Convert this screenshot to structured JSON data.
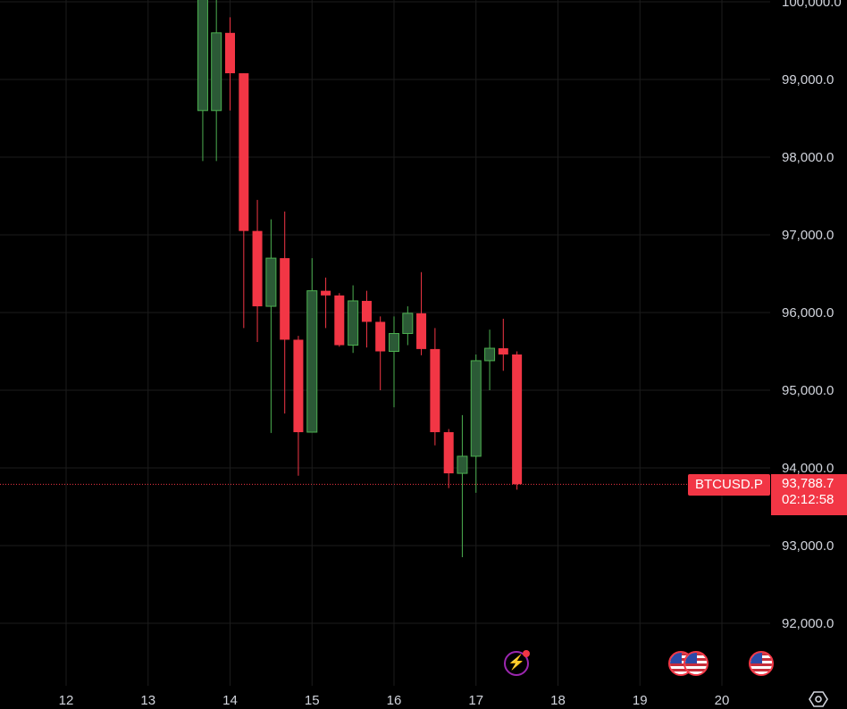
{
  "chart_data": {
    "type": "candlestick",
    "symbol": "BTCUSD.P",
    "last_price": "93,788.7",
    "countdown": "02:12:58",
    "last_price_value": 93788.7,
    "y_ticks": [
      "92,000.0",
      "93,000.0",
      "94,000.0",
      "95,000.0",
      "96,000.0",
      "97,000.0",
      "98,000.0",
      "99,000.0",
      "100,000.0"
    ],
    "y_tick_values": [
      92000,
      93000,
      94000,
      95000,
      96000,
      97000,
      98000,
      99000,
      100000
    ],
    "x_ticks": [
      "12",
      "13",
      "14",
      "15",
      "16",
      "17",
      "18",
      "19",
      "20"
    ],
    "x_tick_days": [
      12,
      13,
      14,
      15,
      16,
      17,
      18,
      19,
      20
    ],
    "colors": {
      "up": "#2b5a36",
      "up_border": "#4caf50",
      "down": "#f23645",
      "grid": "#1c1c1c",
      "last_price_line": "#f23645"
    },
    "candles": [
      {
        "t": 13.667,
        "o": 98600,
        "h": 100500,
        "l": 97950,
        "c": 100400
      },
      {
        "t": 13.833,
        "o": 98600,
        "h": 100100,
        "l": 97950,
        "c": 99600
      },
      {
        "t": 14.0,
        "o": 99600,
        "h": 99800,
        "l": 98600,
        "c": 99080
      },
      {
        "t": 14.167,
        "o": 99080,
        "h": 99080,
        "l": 95800,
        "c": 97050
      },
      {
        "t": 14.333,
        "o": 97050,
        "h": 97450,
        "l": 95620,
        "c": 96080
      },
      {
        "t": 14.5,
        "o": 96080,
        "h": 97200,
        "l": 94450,
        "c": 96700
      },
      {
        "t": 14.667,
        "o": 96700,
        "h": 97300,
        "l": 94700,
        "c": 95650
      },
      {
        "t": 14.833,
        "o": 95650,
        "h": 95700,
        "l": 93900,
        "c": 94460
      },
      {
        "t": 15.0,
        "o": 94460,
        "h": 96700,
        "l": 94460,
        "c": 96280
      },
      {
        "t": 15.167,
        "o": 96280,
        "h": 96450,
        "l": 95800,
        "c": 96220
      },
      {
        "t": 15.333,
        "o": 96220,
        "h": 96250,
        "l": 95560,
        "c": 95580
      },
      {
        "t": 15.5,
        "o": 95580,
        "h": 96350,
        "l": 95480,
        "c": 96150
      },
      {
        "t": 15.667,
        "o": 96150,
        "h": 96280,
        "l": 95550,
        "c": 95880
      },
      {
        "t": 15.833,
        "o": 95880,
        "h": 95950,
        "l": 95000,
        "c": 95500
      },
      {
        "t": 16.0,
        "o": 95500,
        "h": 95950,
        "l": 94780,
        "c": 95730
      },
      {
        "t": 16.167,
        "o": 95730,
        "h": 96080,
        "l": 95580,
        "c": 95990
      },
      {
        "t": 16.333,
        "o": 95990,
        "h": 96520,
        "l": 95450,
        "c": 95530
      },
      {
        "t": 16.5,
        "o": 95530,
        "h": 95800,
        "l": 94290,
        "c": 94460
      },
      {
        "t": 16.667,
        "o": 94460,
        "h": 94500,
        "l": 93740,
        "c": 93930
      },
      {
        "t": 16.833,
        "o": 93930,
        "h": 94680,
        "l": 92850,
        "c": 94150
      },
      {
        "t": 17.0,
        "o": 94150,
        "h": 95460,
        "l": 93680,
        "c": 95380
      },
      {
        "t": 17.167,
        "o": 95380,
        "h": 95780,
        "l": 95000,
        "c": 95540
      },
      {
        "t": 17.333,
        "o": 95540,
        "h": 95920,
        "l": 95250,
        "c": 95460
      },
      {
        "t": 17.5,
        "o": 95460,
        "h": 95500,
        "l": 93720,
        "c": 93790
      }
    ]
  },
  "icons": {
    "lightning": "lightning-icon",
    "us_flag": "us-flag-icon",
    "settings": "settings-icon"
  }
}
